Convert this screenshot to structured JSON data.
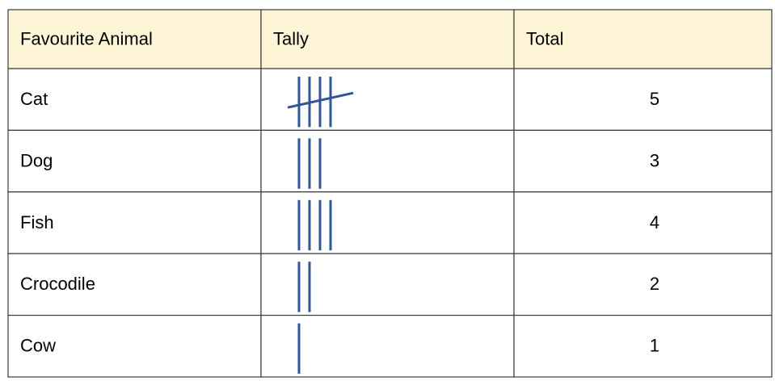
{
  "table": {
    "header": [
      "Favourite Animal",
      "Tally",
      "Total"
    ],
    "rows": [
      [
        "Cat",
        5
      ],
      [
        "Dog",
        3
      ],
      [
        "Fish",
        4
      ],
      [
        "Crocodile",
        2
      ],
      [
        "Cow",
        1
      ]
    ]
  }
}
